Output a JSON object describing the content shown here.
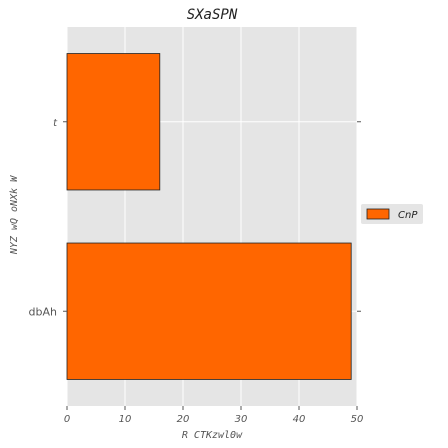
{
  "colors": {
    "panel": "#e5e5e5",
    "grid": "#ffffff",
    "bar": "#ff6600",
    "bar_edge": "#222222",
    "tick": "#555555"
  },
  "chart_data": {
    "type": "bar",
    "orientation": "horizontal",
    "title": "SXaSPN",
    "xlabel": "R   CTKzwl0w",
    "ylabel": "NYZ wQ oNXk W",
    "categories": [
      "dbAh",
      "t"
    ],
    "series": [
      {
        "name": "CnP",
        "values": [
          49,
          16
        ]
      }
    ],
    "xlim": [
      0,
      50
    ],
    "xticks": [
      0,
      10,
      20,
      30,
      40,
      50
    ],
    "grid": true,
    "legend": "right"
  }
}
